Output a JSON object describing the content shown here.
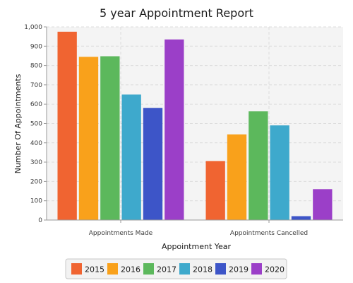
{
  "chart_data": {
    "type": "bar",
    "title": "5 year Appointment Report",
    "xlabel": "Appointment Year",
    "ylabel": "Number Of Appointments",
    "categories": [
      "Appointments Made",
      "Appointments Cancelled"
    ],
    "ylim": [
      0,
      1000
    ],
    "yticks": [
      0,
      100,
      200,
      300,
      400,
      500,
      600,
      700,
      800,
      900,
      1000
    ],
    "ytick_labels": [
      "0",
      "100",
      "200",
      "300",
      "400",
      "500",
      "600",
      "700",
      "800",
      "900",
      "1,000"
    ],
    "grid": true,
    "legend_position": "bottom",
    "series": [
      {
        "name": "2015",
        "color": "#f06431",
        "values": [
          975,
          305
        ]
      },
      {
        "name": "2016",
        "color": "#f9a11b",
        "values": [
          845,
          443
        ]
      },
      {
        "name": "2017",
        "color": "#5cb85c",
        "values": [
          848,
          563
        ]
      },
      {
        "name": "2018",
        "color": "#3ea9cc",
        "values": [
          650,
          490
        ]
      },
      {
        "name": "2019",
        "color": "#3d55c8",
        "values": [
          580,
          20
        ]
      },
      {
        "name": "2020",
        "color": "#9b3fc8",
        "values": [
          935,
          160
        ]
      }
    ]
  }
}
